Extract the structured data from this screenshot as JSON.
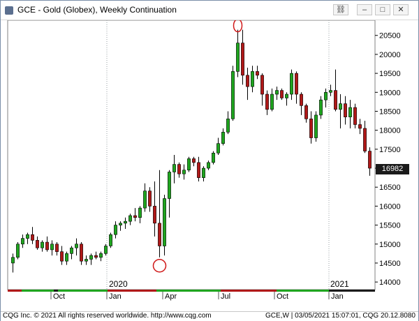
{
  "window": {
    "title": "GCE - Gold (Globex), Weekly Continuation",
    "buttons": [
      "link-icon",
      "minimize-icon",
      "maximize-icon",
      "close-icon"
    ]
  },
  "chart_data": {
    "type": "candlestick",
    "title": "GCE - Gold (Globex), Weekly Continuation",
    "ylim": [
      13800,
      20900
    ],
    "yticks": [
      14000,
      14500,
      15000,
      15500,
      16000,
      16500,
      17000,
      17500,
      18000,
      18500,
      19000,
      19500,
      20000,
      20500
    ],
    "last_price": "16982",
    "colors": {
      "up": "#1fa51f",
      "down": "#b01818",
      "highlight": "#d01818",
      "grid": "#9aa0a6"
    },
    "x_labels": [
      "Oct",
      "Jan",
      "Apr",
      "Jul",
      "Oct",
      "Jan"
    ],
    "year_labels": [
      "2020",
      "2021"
    ],
    "annotations": [
      "circle around high near 20600",
      "circle around low near 14500"
    ],
    "candles": [
      [
        14500,
        14750,
        14250,
        14650
      ],
      [
        14650,
        15050,
        14600,
        15000
      ],
      [
        15000,
        15250,
        14900,
        15150
      ],
      [
        15150,
        15300,
        15000,
        15250
      ],
      [
        15250,
        15450,
        15000,
        15100
      ],
      [
        15100,
        15200,
        14850,
        14900
      ],
      [
        14900,
        15100,
        14800,
        15050
      ],
      [
        15050,
        15200,
        14800,
        14850
      ],
      [
        14850,
        15100,
        14700,
        15000
      ],
      [
        15000,
        15050,
        14700,
        14800
      ],
      [
        14800,
        14950,
        14450,
        14550
      ],
      [
        14550,
        14800,
        14450,
        14750
      ],
      [
        14750,
        14950,
        14600,
        14900
      ],
      [
        14900,
        15150,
        14700,
        15000
      ],
      [
        15000,
        15050,
        14450,
        14550
      ],
      [
        14550,
        14700,
        14450,
        14600
      ],
      [
        14600,
        14750,
        14450,
        14700
      ],
      [
        14700,
        14800,
        14600,
        14650
      ],
      [
        14650,
        14800,
        14550,
        14750
      ],
      [
        14750,
        15000,
        14700,
        14950
      ],
      [
        14950,
        15300,
        14900,
        15250
      ],
      [
        15250,
        15600,
        15150,
        15500
      ],
      [
        15500,
        15600,
        15350,
        15550
      ],
      [
        15550,
        15700,
        15400,
        15600
      ],
      [
        15600,
        15800,
        15500,
        15750
      ],
      [
        15750,
        15950,
        15600,
        15700
      ],
      [
        15700,
        16000,
        15550,
        15950
      ],
      [
        15950,
        16600,
        15850,
        16400
      ],
      [
        16400,
        16500,
        15850,
        16000
      ],
      [
        16000,
        16650,
        15200,
        15550
      ],
      [
        15550,
        16950,
        14650,
        14950
      ],
      [
        14950,
        16300,
        14700,
        16200
      ],
      [
        16200,
        16950,
        15700,
        16900
      ],
      [
        16900,
        17350,
        16600,
        17100
      ],
      [
        17100,
        17150,
        16750,
        16850
      ],
      [
        16850,
        17100,
        16700,
        16950
      ],
      [
        16950,
        17300,
        16900,
        17250
      ],
      [
        17250,
        17300,
        17050,
        17150
      ],
      [
        17150,
        17300,
        16650,
        16750
      ],
      [
        16750,
        17050,
        16650,
        17000
      ],
      [
        17000,
        17200,
        16950,
        17150
      ],
      [
        17150,
        17450,
        17100,
        17400
      ],
      [
        17400,
        17800,
        17350,
        17650
      ],
      [
        17650,
        18050,
        17600,
        17950
      ],
      [
        17950,
        18500,
        17900,
        18300
      ],
      [
        18300,
        19700,
        18250,
        19550
      ],
      [
        19550,
        20650,
        19400,
        20300
      ],
      [
        20300,
        20650,
        19200,
        19450
      ],
      [
        19450,
        19650,
        18800,
        19150
      ],
      [
        19150,
        19700,
        19000,
        19550
      ],
      [
        19550,
        19700,
        19350,
        19450
      ],
      [
        19450,
        19500,
        18650,
        18950
      ],
      [
        18950,
        19050,
        18400,
        18550
      ],
      [
        18550,
        19100,
        18500,
        18950
      ],
      [
        18950,
        19150,
        18800,
        19050
      ],
      [
        19050,
        19100,
        18800,
        18850
      ],
      [
        18850,
        19000,
        18650,
        18950
      ],
      [
        18950,
        19600,
        18800,
        19500
      ],
      [
        19500,
        19550,
        18700,
        18950
      ],
      [
        18950,
        19000,
        18400,
        18650
      ],
      [
        18650,
        18700,
        18200,
        18300
      ],
      [
        18300,
        18500,
        17650,
        17800
      ],
      [
        17800,
        18500,
        17700,
        18400
      ],
      [
        18400,
        18900,
        18300,
        18800
      ],
      [
        18800,
        19100,
        18600,
        19000
      ],
      [
        19000,
        19200,
        18900,
        19050
      ],
      [
        19050,
        19600,
        18500,
        18550
      ],
      [
        18550,
        18950,
        18050,
        18700
      ],
      [
        18700,
        18900,
        18150,
        18350
      ],
      [
        18350,
        18800,
        18050,
        18600
      ],
      [
        18600,
        18700,
        18050,
        18150
      ],
      [
        18150,
        18300,
        17900,
        18050
      ],
      [
        18050,
        18250,
        17400,
        17450
      ],
      [
        17450,
        17550,
        16800,
        17000
      ]
    ]
  },
  "status": {
    "left": "CQG Inc. © 2021 All rights reserved worldwide. http://www.cqg.com",
    "right": "GCE,W | 03/05/2021 15:07:01, CQG 20.12.8080"
  }
}
